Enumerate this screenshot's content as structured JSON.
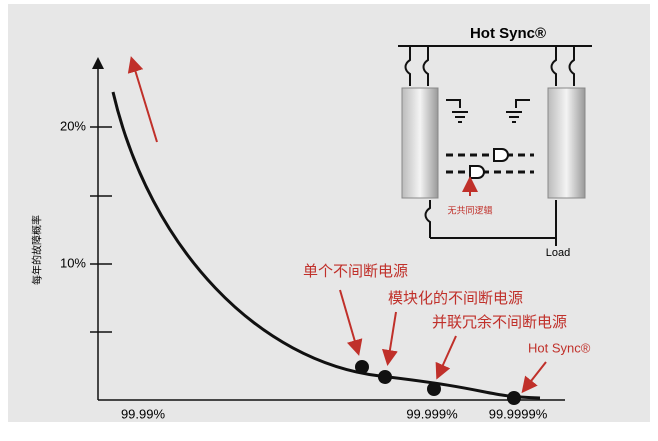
{
  "inset": {
    "title": "Hot Sync®",
    "note": "无共同逻辑",
    "load": "Load"
  },
  "y_axis": {
    "label": "每年的故障概率",
    "ticks": [
      "20%",
      "10%"
    ]
  },
  "x_axis": {
    "ticks": [
      "99.99%",
      "99.999%",
      "99.9999%"
    ]
  },
  "annotations": [
    "单个不间断电源",
    "模块化的不间断电源",
    "并联冗余不间断电源",
    "Hot Sync®"
  ]
}
